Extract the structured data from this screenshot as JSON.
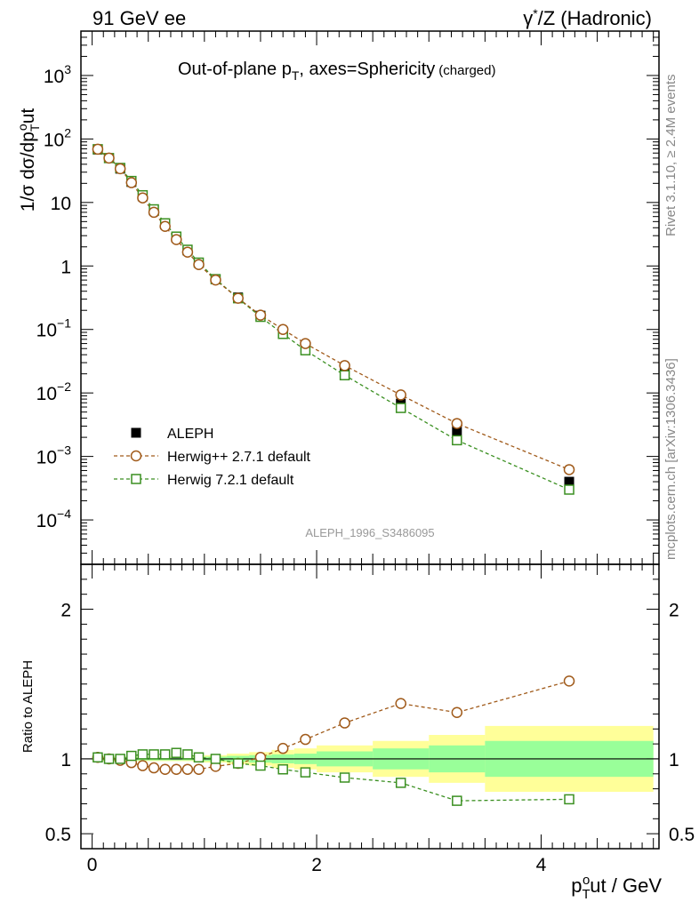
{
  "header": {
    "left": "91 GeV ee",
    "right_prefix": "γ",
    "right_sup": "*",
    "right_suffix": "/Z (Hadronic)"
  },
  "title": {
    "main": "Out-of-plane p",
    "sub": "T",
    "rest": ", axes=Sphericity",
    "small": "(charged)"
  },
  "side_labels": {
    "rivet": "Rivet 3.1.10, ≥ 2.4M events",
    "mcplots": "mcplots.cern.ch [arXiv:1306.3436]"
  },
  "watermark": "ALEPH_1996_S3486095",
  "colors": {
    "data": "#000000",
    "herwigpp": "#a05a1a",
    "herwig7": "#3a8f20",
    "band_outer": "#ffff99",
    "band_inner": "#99ff99"
  },
  "chart_data": [
    {
      "type": "scatter",
      "panel": "main",
      "ylabel_parts": [
        "1/σ dσ/dp",
        "T",
        "o",
        "ut"
      ],
      "yscale": "log",
      "ylim": [
        2e-05,
        5000
      ],
      "xlim": [
        -0.1,
        5.05
      ],
      "ytick_labels": [
        {
          "value": 0.0001,
          "base": "10",
          "exp": "−4"
        },
        {
          "value": 0.001,
          "base": "10",
          "exp": "−3"
        },
        {
          "value": 0.01,
          "base": "10",
          "exp": "−2"
        },
        {
          "value": 0.1,
          "base": "10",
          "exp": "−1"
        },
        {
          "value": 1,
          "base": "1",
          "exp": ""
        },
        {
          "value": 10,
          "base": "10",
          "exp": ""
        },
        {
          "value": 100,
          "base": "10",
          "exp": "2"
        },
        {
          "value": 1000,
          "base": "10",
          "exp": "3"
        }
      ],
      "legend_position": "lower-left",
      "x": [
        0.05,
        0.15,
        0.25,
        0.35,
        0.45,
        0.55,
        0.65,
        0.75,
        0.85,
        0.95,
        1.1,
        1.3,
        1.5,
        1.7,
        1.9,
        2.25,
        2.75,
        3.25,
        4.25
      ],
      "series": [
        {
          "name": "ALEPH",
          "style": "marker-square-filled",
          "values": [
            68,
            50,
            34,
            21,
            12.5,
            7.5,
            4.5,
            2.8,
            1.75,
            1.12,
            0.62,
            0.32,
            0.165,
            0.092,
            0.052,
            0.022,
            0.0068,
            0.0025,
            0.0004
          ]
        },
        {
          "name": "Herwig++ 2.7.1 default",
          "style": "dashed-circle-open",
          "values": [
            69,
            50,
            34,
            20.5,
            11.8,
            7.0,
            4.2,
            2.6,
            1.65,
            1.05,
            0.6,
            0.31,
            0.168,
            0.1,
            0.06,
            0.027,
            0.0093,
            0.0033,
            0.00062
          ]
        },
        {
          "name": "Herwig 7.2.1 default",
          "style": "dashed-square-open",
          "values": [
            69,
            50,
            35,
            21.8,
            13.0,
            7.8,
            4.7,
            2.9,
            1.8,
            1.13,
            0.62,
            0.31,
            0.158,
            0.085,
            0.047,
            0.019,
            0.0058,
            0.0018,
            0.0003
          ]
        }
      ]
    },
    {
      "type": "scatter",
      "panel": "ratio",
      "ylabel": "Ratio to ALEPH",
      "xlabel_parts": [
        "p",
        "T",
        "o",
        "ut / GeV"
      ],
      "ylim": [
        0.4,
        2.3
      ],
      "xlim": [
        -0.1,
        5.05
      ],
      "ytick_labels": [
        "0.5",
        "1",
        "2"
      ],
      "xtick_labels": [
        "0",
        "2",
        "4"
      ],
      "band_bins": [
        {
          "lo": 0.0,
          "hi": 0.1,
          "inner": 0.01,
          "outer": 0.015
        },
        {
          "lo": 0.1,
          "hi": 0.2,
          "inner": 0.01,
          "outer": 0.015
        },
        {
          "lo": 0.2,
          "hi": 0.3,
          "inner": 0.01,
          "outer": 0.015
        },
        {
          "lo": 0.3,
          "hi": 0.4,
          "inner": 0.01,
          "outer": 0.015
        },
        {
          "lo": 0.4,
          "hi": 0.5,
          "inner": 0.01,
          "outer": 0.015
        },
        {
          "lo": 0.5,
          "hi": 0.6,
          "inner": 0.01,
          "outer": 0.015
        },
        {
          "lo": 0.6,
          "hi": 0.7,
          "inner": 0.01,
          "outer": 0.015
        },
        {
          "lo": 0.7,
          "hi": 0.8,
          "inner": 0.01,
          "outer": 0.015
        },
        {
          "lo": 0.8,
          "hi": 0.9,
          "inner": 0.01,
          "outer": 0.015
        },
        {
          "lo": 0.9,
          "hi": 1.0,
          "inner": 0.01,
          "outer": 0.02
        },
        {
          "lo": 1.0,
          "hi": 1.2,
          "inner": 0.015,
          "outer": 0.025
        },
        {
          "lo": 1.2,
          "hi": 1.4,
          "inner": 0.02,
          "outer": 0.035
        },
        {
          "lo": 1.4,
          "hi": 1.6,
          "inner": 0.025,
          "outer": 0.045
        },
        {
          "lo": 1.6,
          "hi": 1.8,
          "inner": 0.03,
          "outer": 0.06
        },
        {
          "lo": 1.8,
          "hi": 2.0,
          "inner": 0.035,
          "outer": 0.07
        },
        {
          "lo": 2.0,
          "hi": 2.5,
          "inner": 0.05,
          "outer": 0.09
        },
        {
          "lo": 2.5,
          "hi": 3.0,
          "inner": 0.07,
          "outer": 0.12
        },
        {
          "lo": 3.0,
          "hi": 3.5,
          "inner": 0.09,
          "outer": 0.16
        },
        {
          "lo": 3.5,
          "hi": 5.0,
          "inner": 0.12,
          "outer": 0.22
        }
      ],
      "x": [
        0.05,
        0.15,
        0.25,
        0.35,
        0.45,
        0.55,
        0.65,
        0.75,
        0.85,
        0.95,
        1.1,
        1.3,
        1.5,
        1.7,
        1.9,
        2.25,
        2.75,
        3.25,
        4.25
      ],
      "series": [
        {
          "name": "Herwig++ 2.7.1 default",
          "style": "dashed-circle-open",
          "values": [
            1.01,
            1.0,
            0.99,
            0.975,
            0.955,
            0.94,
            0.93,
            0.93,
            0.93,
            0.93,
            0.95,
            0.97,
            1.01,
            1.07,
            1.13,
            1.24,
            1.37,
            1.31,
            1.52
          ]
        },
        {
          "name": "Herwig 7.2.1 default",
          "style": "dashed-square-open",
          "values": [
            1.01,
            1.0,
            1.0,
            1.02,
            1.03,
            1.03,
            1.03,
            1.04,
            1.03,
            1.01,
            1.0,
            0.97,
            0.955,
            0.93,
            0.91,
            0.875,
            0.84,
            0.72,
            0.73
          ]
        }
      ]
    }
  ]
}
